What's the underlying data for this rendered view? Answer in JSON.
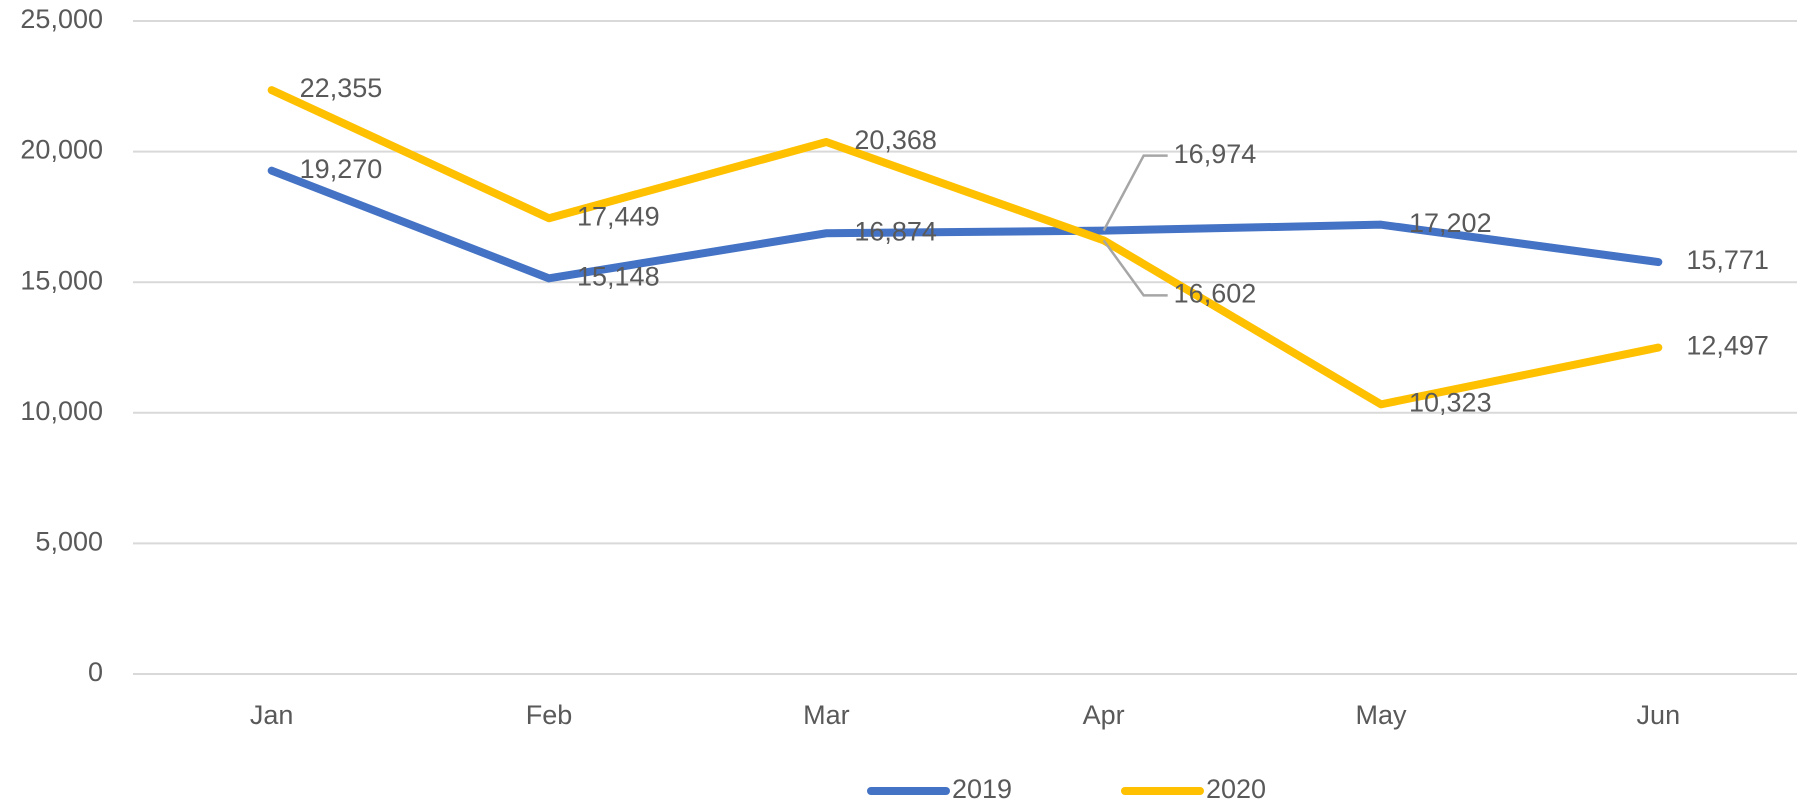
{
  "chart_data": {
    "type": "line",
    "categories": [
      "Jan",
      "Feb",
      "Mar",
      "Apr",
      "May",
      "Jun"
    ],
    "series": [
      {
        "name": "2019",
        "color": "#4472c4",
        "values": [
          19270,
          15148,
          16874,
          16974,
          17202,
          15771
        ],
        "value_labels": [
          "19,270",
          "15,148",
          "16,874",
          "16,974",
          "17,202",
          "15,771"
        ]
      },
      {
        "name": "2020",
        "color": "#ffc000",
        "values": [
          22355,
          17449,
          20368,
          16602,
          10323,
          12497
        ],
        "value_labels": [
          "22,355",
          "17,449",
          "20,368",
          "16,602",
          "10,323",
          "12,497"
        ]
      }
    ],
    "ylim": [
      0,
      25000
    ],
    "yticks": [
      0,
      {
        "value": 5000,
        "label": "5,000"
      },
      {
        "value": 10000,
        "label": "10,000"
      },
      {
        "value": 15000,
        "label": "15,000"
      },
      {
        "value": 20000,
        "label": "20,000"
      },
      {
        "value": 25000,
        "label": "25,000"
      }
    ],
    "grid": true,
    "legend": "bottom"
  }
}
